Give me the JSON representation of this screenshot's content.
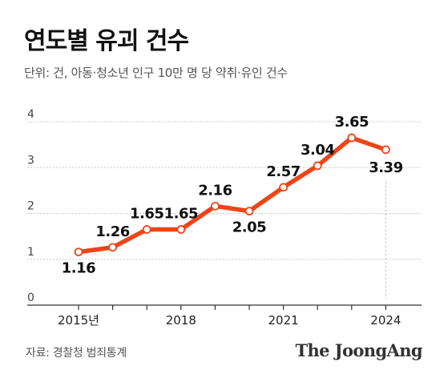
{
  "title": "연도별 유괴 건수",
  "subtitle": "단위: 건, 아동·청소년 인구 10만 명 당 약취·유인 건수",
  "source": "자료: 경찰청 범죄통계",
  "logo": "The JoongAng",
  "colors": {
    "line": "#f04418",
    "grid": "#c8c8c8",
    "marker_fill": "#ffffff"
  },
  "chart_data": {
    "type": "line",
    "x": [
      2015,
      2016,
      2017,
      2018,
      2019,
      2020,
      2021,
      2022,
      2023,
      2024
    ],
    "values": [
      1.16,
      1.26,
      1.65,
      1.65,
      2.16,
      2.05,
      2.57,
      3.04,
      3.65,
      3.39
    ],
    "data_labels": [
      "1.16",
      "1.26",
      "1.65",
      "1.65",
      "2.16",
      "2.05",
      "2.57",
      "3.04",
      "3.65",
      "3.39"
    ],
    "x_tick_labels": [
      "2015년",
      "2018",
      "2021",
      "2024"
    ],
    "y_tick_labels": [
      "0",
      "1",
      "2",
      "3",
      "4"
    ],
    "ylim": [
      0,
      4
    ],
    "grid": true
  }
}
